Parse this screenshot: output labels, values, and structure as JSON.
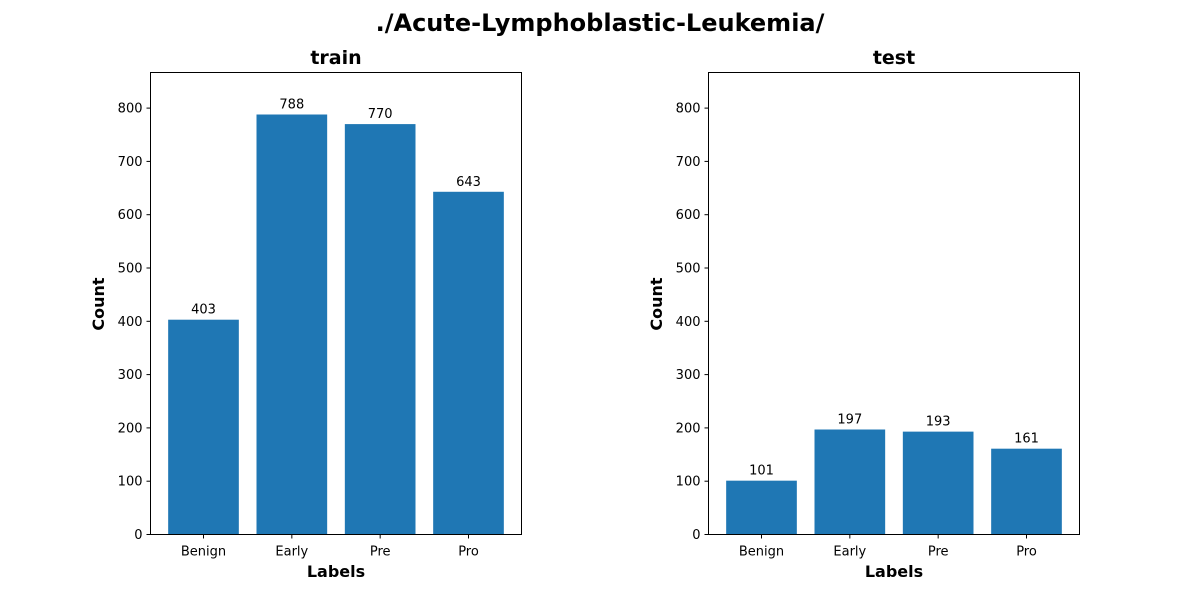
{
  "chart_data": {
    "suptitle": "./Acute-Lymphoblastic-Leukemia/",
    "charts": [
      {
        "type": "bar",
        "title": "train",
        "xlabel": "Labels",
        "ylabel": "Count",
        "categories": [
          "Benign",
          "Early",
          "Pre",
          "Pro"
        ],
        "values": [
          403,
          788,
          770,
          643
        ],
        "data_labels": [
          "403",
          "788",
          "770",
          "643"
        ],
        "ylim": [
          0,
          866.8
        ],
        "yticks": [
          0,
          100,
          200,
          300,
          400,
          500,
          600,
          700,
          800
        ],
        "bar_color": "#1f77b4",
        "grid": false,
        "legend": "none"
      },
      {
        "type": "bar",
        "title": "test",
        "xlabel": "Labels",
        "ylabel": "Count",
        "categories": [
          "Benign",
          "Early",
          "Pre",
          "Pro"
        ],
        "values": [
          101,
          197,
          193,
          161
        ],
        "data_labels": [
          "101",
          "197",
          "193",
          "161"
        ],
        "ylim": [
          0,
          866.8
        ],
        "yticks": [
          0,
          100,
          200,
          300,
          400,
          500,
          600,
          700,
          800
        ],
        "bar_color": "#1f77b4",
        "grid": false,
        "legend": "none"
      }
    ]
  }
}
